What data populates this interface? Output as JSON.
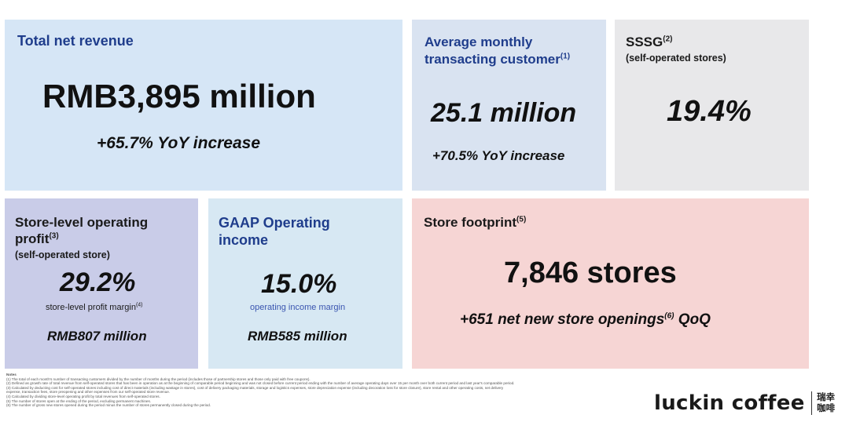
{
  "cards": {
    "revenue": {
      "title": "Total net revenue",
      "value": "RMB3,895 million",
      "change": "+65.7% YoY increase"
    },
    "mtc": {
      "title_line1": "Average monthly",
      "title_line2": "transacting customer",
      "note_ref": "(1)",
      "value": "25.1 million",
      "change": "+70.5% YoY increase"
    },
    "sssg": {
      "title": "SSSG",
      "note_ref": "(2)",
      "subtitle": "(self-operated stores)",
      "value": "19.4%"
    },
    "store_profit": {
      "title_line1": "Store-level operating",
      "title_line2": "profit",
      "note_ref": "(3)",
      "subtitle": "(self-operated store)",
      "value": "29.2%",
      "metric_label": "store-level profit margin",
      "metric_note_ref": "(4)",
      "amount": "RMB807 million"
    },
    "gaap": {
      "title_line1": "GAAP Operating",
      "title_line2": "income",
      "value": "15.0%",
      "metric_label": "operating income margin",
      "amount": "RMB585 million"
    },
    "footprint": {
      "title": "Store footprint",
      "note_ref": "(5)",
      "value": "7,846 stores",
      "change_prefix": "+651 net new store openings",
      "change_note_ref": "(6)",
      "change_suffix": " QoQ"
    }
  },
  "notes": {
    "heading": "Notes",
    "lines": [
      "(1) The total of each month's number of transacting customers divided by the number of months during the period (includes those of partnership stores and those only paid with free coupons).",
      "(2) Defined as growth rate of total revenue from self-operated stores that has been in operation as at the beginning of comparable period beginning and was not closed before current period ending with the number of average operating days over 15 per month over both current period and last year's comparable period.",
      "(3) Calculated by deducting cost for self-operated stores including cost of direct materials (including wastage in stores), cost of delivery packaging materials, storage and logistics expenses, store depreciation expense (including decoration loss for store closure), store rental and other operating costs, net delivery",
      "expense, transaction fees, store preopening and other expenses from our self-operated store revenue.",
      "(4) Calculated by dividing store-level operating profit by total revenues from self-operated stores.",
      "(5) The number of stores open at the ending of the period, excluding permanent machines.",
      "(6) The number of gross new stores opened during the period minus the number of stores permanently closed during the period."
    ]
  },
  "logo": {
    "text": "luckin coffee",
    "cn_line1": "瑞幸",
    "cn_line2": "咖啡"
  }
}
